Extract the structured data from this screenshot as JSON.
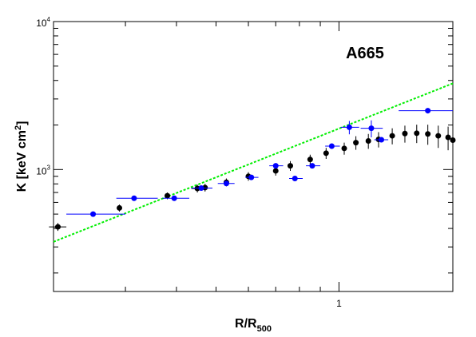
{
  "chart_data": {
    "type": "scatter",
    "title": "A665",
    "xlabel": "R/R",
    "xlabel_sub": "500",
    "ylabel": "K [keV cm",
    "ylabel_sup": "2",
    "ylabel_end": "]",
    "x_scale": "log",
    "y_scale": "log",
    "xlim": [
      0.2,
      1.9
    ],
    "ylim": [
      150,
      10000
    ],
    "x_tick_labels": [
      {
        "value": 1,
        "label": "1"
      }
    ],
    "y_tick_labels": [
      {
        "value": 1000,
        "label": "10",
        "sup": "3"
      },
      {
        "value": 10000,
        "label": "10",
        "sup": "4"
      }
    ],
    "grid": false,
    "series": [
      {
        "color": "#000000",
        "points": [
          {
            "x": 0.205,
            "y": 410,
            "xerr": [
              0.01,
              0.01
            ],
            "yerr": [
              25,
              25
            ]
          },
          {
            "x": 0.29,
            "y": 550,
            "xerr": [
              0,
              0
            ],
            "yerr": [
              30,
              30
            ]
          },
          {
            "x": 0.38,
            "y": 665,
            "xerr": [
              0,
              0
            ],
            "yerr": [
              35,
              35
            ]
          },
          {
            "x": 0.45,
            "y": 745,
            "xerr": [
              0.015,
              0.015
            ],
            "yerr": [
              45,
              45
            ]
          },
          {
            "x": 0.47,
            "y": 755,
            "xerr": [
              0,
              0
            ],
            "yerr": [
              45,
              45
            ]
          },
          {
            "x": 0.53,
            "y": 820,
            "xerr": [
              0,
              0
            ],
            "yerr": [
              50,
              50
            ]
          },
          {
            "x": 0.6,
            "y": 900,
            "xerr": [
              0,
              0
            ],
            "yerr": [
              60,
              60
            ]
          },
          {
            "x": 0.7,
            "y": 980,
            "xerr": [
              0,
              0
            ],
            "yerr": [
              70,
              70
            ]
          },
          {
            "x": 0.76,
            "y": 1060,
            "xerr": [
              0,
              0
            ],
            "yerr": [
              80,
              80
            ]
          },
          {
            "x": 0.85,
            "y": 1170,
            "xerr": [
              0,
              0
            ],
            "yerr": [
              90,
              90
            ]
          },
          {
            "x": 0.93,
            "y": 1290,
            "xerr": [
              0,
              0
            ],
            "yerr": [
              110,
              110
            ]
          },
          {
            "x": 1.03,
            "y": 1390,
            "xerr": [
              0,
              0
            ],
            "yerr": [
              130,
              130
            ]
          },
          {
            "x": 1.1,
            "y": 1520,
            "xerr": [
              0,
              0
            ],
            "yerr": [
              160,
              160
            ]
          },
          {
            "x": 1.18,
            "y": 1560,
            "xerr": [
              0,
              0
            ],
            "yerr": [
              180,
              180
            ]
          },
          {
            "x": 1.25,
            "y": 1600,
            "xerr": [
              0,
              0
            ],
            "yerr": [
              190,
              190
            ]
          },
          {
            "x": 1.35,
            "y": 1690,
            "xerr": [
              0,
              0
            ],
            "yerr": [
              210,
              210
            ]
          },
          {
            "x": 1.45,
            "y": 1750,
            "xerr": [
              0,
              0
            ],
            "yerr": [
              230,
              230
            ]
          },
          {
            "x": 1.55,
            "y": 1760,
            "xerr": [
              0,
              0
            ],
            "yerr": [
              250,
              250
            ]
          },
          {
            "x": 1.65,
            "y": 1740,
            "xerr": [
              0,
              0
            ],
            "yerr": [
              270,
              270
            ]
          },
          {
            "x": 1.75,
            "y": 1690,
            "xerr": [
              0,
              0
            ],
            "yerr": [
              290,
              290
            ]
          },
          {
            "x": 1.85,
            "y": 1650,
            "xerr": [
              0,
              0
            ],
            "yerr": [
              300,
              300
            ]
          },
          {
            "x": 1.9,
            "y": 1580,
            "xerr": [
              0,
              0
            ],
            "yerr": [
              320,
              320
            ]
          }
        ]
      },
      {
        "color": "#0000ff",
        "points": [
          {
            "x": 0.25,
            "y": 500,
            "xerr": [
              0.035,
              0.05
            ],
            "yerr": [
              0,
              0
            ]
          },
          {
            "x": 0.315,
            "y": 640,
            "xerr": [
              0.03,
              0.045
            ],
            "yerr": [
              0,
              0
            ]
          },
          {
            "x": 0.395,
            "y": 640,
            "xerr": [
              0.025,
              0.035
            ],
            "yerr": [
              0,
              0
            ]
          },
          {
            "x": 0.46,
            "y": 750,
            "xerr": [
              0.025,
              0.03
            ],
            "yerr": [
              0,
              0
            ]
          },
          {
            "x": 0.53,
            "y": 805,
            "xerr": [
              0.025,
              0.025
            ],
            "yerr": [
              0,
              0
            ]
          },
          {
            "x": 0.61,
            "y": 885,
            "xerr": [
              0.02,
              0.025
            ],
            "yerr": [
              0,
              0
            ]
          },
          {
            "x": 0.7,
            "y": 1060,
            "xerr": [
              0.025,
              0.03
            ],
            "yerr": [
              0,
              0
            ]
          },
          {
            "x": 0.78,
            "y": 870,
            "xerr": [
              0.025,
              0.035
            ],
            "yerr": [
              0,
              0
            ]
          },
          {
            "x": 0.86,
            "y": 1060,
            "xerr": [
              0.03,
              0.04
            ],
            "yerr": [
              0,
              0
            ]
          },
          {
            "x": 0.96,
            "y": 1440,
            "xerr": [
              0.035,
              0.045
            ],
            "yerr": [
              0,
              0
            ]
          },
          {
            "x": 1.06,
            "y": 1930,
            "xerr": [
              0.05,
              0.06
            ],
            "yerr": [
              200,
              200
            ]
          },
          {
            "x": 1.2,
            "y": 1900,
            "xerr": [
              0.07,
              0.08
            ],
            "yerr": [
              250,
              250
            ]
          },
          {
            "x": 1.27,
            "y": 1590,
            "xerr": [
              0.05,
              0.05
            ],
            "yerr": [
              0,
              0
            ]
          },
          {
            "x": 1.65,
            "y": 2500,
            "xerr": [
              0.25,
              0.25
            ],
            "yerr": [
              0,
              0
            ]
          }
        ]
      }
    ],
    "reference_line": {
      "color": "#00ee00",
      "points": [
        {
          "x": 0.2,
          "y": 325
        },
        {
          "x": 1.9,
          "y": 3820
        }
      ]
    }
  }
}
